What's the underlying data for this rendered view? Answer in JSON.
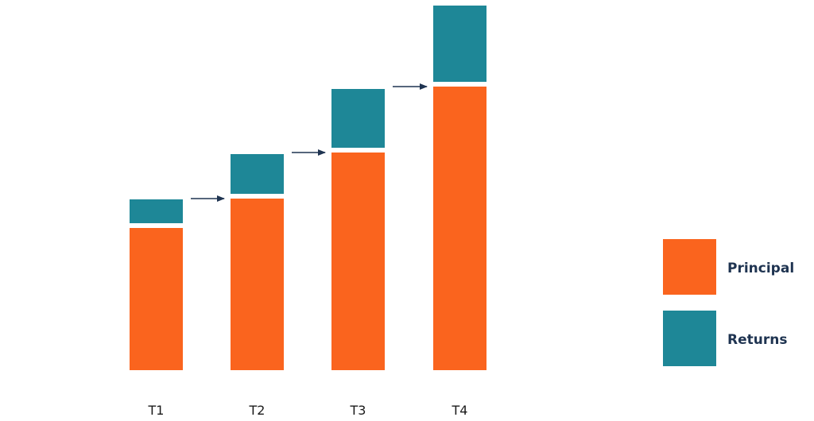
{
  "chart_data": {
    "type": "bar",
    "stacked": true,
    "categories": [
      "T1",
      "T2",
      "T3",
      "T4"
    ],
    "series": [
      {
        "name": "Principal",
        "color": "#fa641e",
        "values": [
          179,
          216,
          274,
          357
        ]
      },
      {
        "name": "Returns",
        "color": "#1e8797",
        "values": [
          30,
          50,
          74,
          96
        ]
      }
    ],
    "ylim": [
      0,
      461
    ],
    "grid": false,
    "legend_position": "right",
    "arrows_between_bars": true,
    "title": "",
    "xlabel": "",
    "ylabel": ""
  },
  "legend": {
    "items": [
      {
        "label": "Principal",
        "color": "#fa641e"
      },
      {
        "label": "Returns",
        "color": "#1e8797"
      }
    ]
  },
  "colors": {
    "arrow": "#1f3451",
    "background": "#ffffff"
  }
}
